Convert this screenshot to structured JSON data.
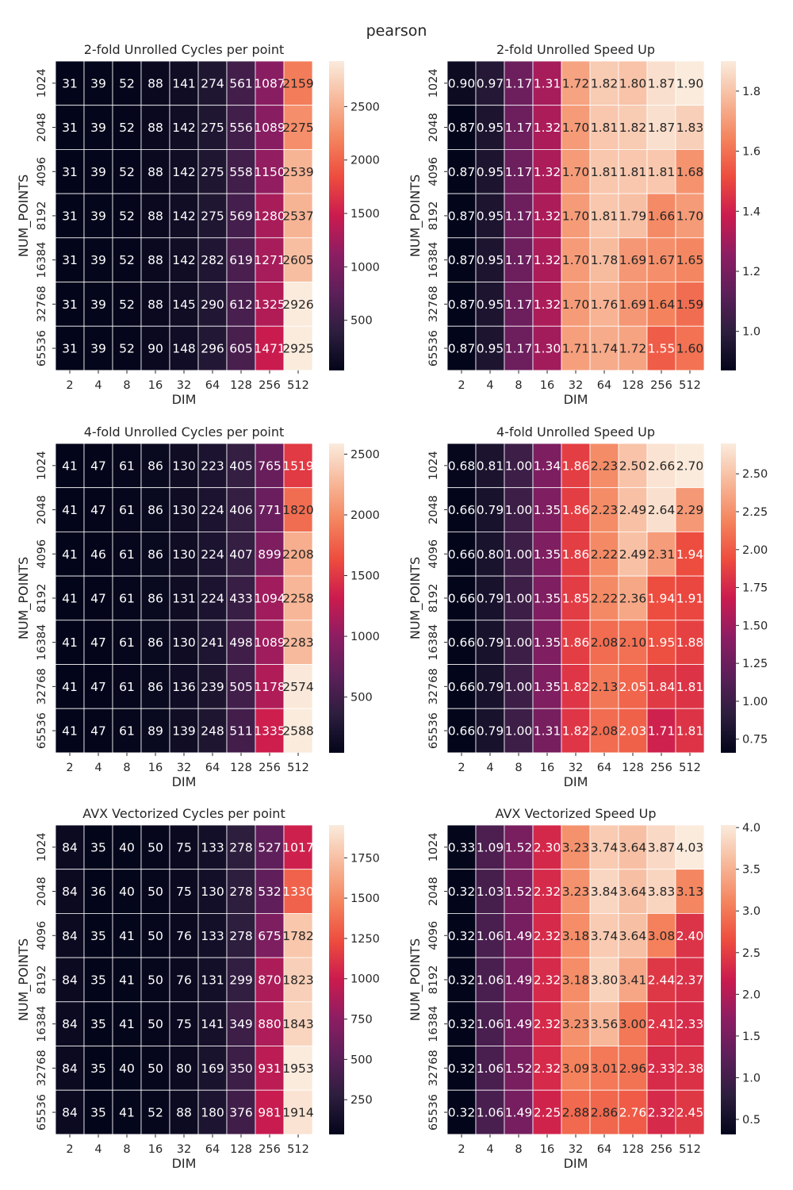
{
  "figure_title": "pearson",
  "chart_data": [
    {
      "type": "heatmap",
      "title": "2-fold Unrolled Cycles per point",
      "xlabel": "DIM",
      "ylabel": "NUM_POINTS",
      "x": [
        "2",
        "4",
        "8",
        "16",
        "32",
        "64",
        "128",
        "256",
        "512"
      ],
      "y": [
        "1024",
        "2048",
        "4096",
        "8192",
        "16384",
        "32768",
        "65536"
      ],
      "values": [
        [
          31,
          39,
          52,
          88,
          141,
          274,
          561,
          1087,
          2159
        ],
        [
          31,
          39,
          52,
          88,
          142,
          275,
          556,
          1089,
          2275
        ],
        [
          31,
          39,
          52,
          88,
          142,
          275,
          558,
          1150,
          2539
        ],
        [
          31,
          39,
          52,
          88,
          142,
          275,
          569,
          1280,
          2537
        ],
        [
          31,
          39,
          52,
          88,
          142,
          282,
          619,
          1271,
          2605
        ],
        [
          31,
          39,
          52,
          88,
          145,
          290,
          612,
          1325,
          2926
        ],
        [
          31,
          39,
          52,
          90,
          148,
          296,
          605,
          1471,
          2925
        ]
      ],
      "value_labels": [
        [
          "31",
          "39",
          "52",
          "88",
          "141",
          "274",
          "561",
          "1087",
          "2159"
        ],
        [
          "31",
          "39",
          "52",
          "88",
          "142",
          "275",
          "556",
          "1089",
          "2275"
        ],
        [
          "31",
          "39",
          "52",
          "88",
          "142",
          "275",
          "558",
          "1150",
          "2539"
        ],
        [
          "31",
          "39",
          "52",
          "88",
          "142",
          "275",
          "569",
          "1280",
          "2537"
        ],
        [
          "31",
          "39",
          "52",
          "88",
          "142",
          "282",
          "619",
          "1271",
          "2605"
        ],
        [
          "31",
          "39",
          "52",
          "88",
          "145",
          "290",
          "612",
          "1325",
          "2926"
        ],
        [
          "31",
          "39",
          "52",
          "90",
          "148",
          "296",
          "605",
          "1471",
          "2925"
        ]
      ],
      "vmin": 31,
      "vmax": 2926,
      "colorbar_ticks": [
        500,
        1000,
        1500,
        2000,
        2500
      ],
      "colorbar_tick_labels": [
        "500",
        "1000",
        "1500",
        "2000",
        "2500"
      ],
      "colormap": "rocket"
    },
    {
      "type": "heatmap",
      "title": "2-fold Unrolled Speed Up",
      "xlabel": "DIM",
      "ylabel": "NUM_POINTS",
      "x": [
        "2",
        "4",
        "8",
        "16",
        "32",
        "64",
        "128",
        "256",
        "512"
      ],
      "y": [
        "1024",
        "2048",
        "4096",
        "8192",
        "16384",
        "32768",
        "65536"
      ],
      "values": [
        [
          0.9,
          0.97,
          1.17,
          1.31,
          1.72,
          1.82,
          1.8,
          1.87,
          1.9
        ],
        [
          0.87,
          0.95,
          1.17,
          1.32,
          1.7,
          1.81,
          1.82,
          1.87,
          1.83
        ],
        [
          0.87,
          0.95,
          1.17,
          1.32,
          1.7,
          1.81,
          1.81,
          1.81,
          1.68
        ],
        [
          0.87,
          0.95,
          1.17,
          1.32,
          1.7,
          1.81,
          1.79,
          1.66,
          1.7
        ],
        [
          0.87,
          0.95,
          1.17,
          1.32,
          1.7,
          1.78,
          1.69,
          1.67,
          1.65
        ],
        [
          0.87,
          0.95,
          1.17,
          1.32,
          1.7,
          1.76,
          1.69,
          1.64,
          1.59
        ],
        [
          0.87,
          0.95,
          1.17,
          1.3,
          1.71,
          1.74,
          1.72,
          1.55,
          1.6
        ]
      ],
      "value_labels": [
        [
          "0.90",
          "0.97",
          "1.17",
          "1.31",
          "1.72",
          "1.82",
          "1.80",
          "1.87",
          "1.90"
        ],
        [
          "0.87",
          "0.95",
          "1.17",
          "1.32",
          "1.70",
          "1.81",
          "1.82",
          "1.87",
          "1.83"
        ],
        [
          "0.87",
          "0.95",
          "1.17",
          "1.32",
          "1.70",
          "1.81",
          "1.81",
          "1.81",
          "1.68"
        ],
        [
          "0.87",
          "0.95",
          "1.17",
          "1.32",
          "1.70",
          "1.81",
          "1.79",
          "1.66",
          "1.70"
        ],
        [
          "0.87",
          "0.95",
          "1.17",
          "1.32",
          "1.70",
          "1.78",
          "1.69",
          "1.67",
          "1.65"
        ],
        [
          "0.87",
          "0.95",
          "1.17",
          "1.32",
          "1.70",
          "1.76",
          "1.69",
          "1.64",
          "1.59"
        ],
        [
          "0.87",
          "0.95",
          "1.17",
          "1.30",
          "1.71",
          "1.74",
          "1.72",
          "1.55",
          "1.60"
        ]
      ],
      "vmin": 0.87,
      "vmax": 1.9,
      "colorbar_ticks": [
        1.0,
        1.2,
        1.4,
        1.6,
        1.8
      ],
      "colorbar_tick_labels": [
        "1.0",
        "1.2",
        "1.4",
        "1.6",
        "1.8"
      ],
      "colormap": "rocket"
    },
    {
      "type": "heatmap",
      "title": "4-fold Unrolled Cycles per point",
      "xlabel": "DIM",
      "ylabel": "NUM_POINTS",
      "x": [
        "2",
        "4",
        "8",
        "16",
        "32",
        "64",
        "128",
        "256",
        "512"
      ],
      "y": [
        "1024",
        "2048",
        "4096",
        "8192",
        "16384",
        "32768",
        "65536"
      ],
      "values": [
        [
          41,
          47,
          61,
          86,
          130,
          223,
          405,
          765,
          1519
        ],
        [
          41,
          47,
          61,
          86,
          130,
          224,
          406,
          771,
          1820
        ],
        [
          41,
          46,
          61,
          86,
          130,
          224,
          407,
          899,
          2208
        ],
        [
          41,
          47,
          61,
          86,
          131,
          224,
          433,
          1094,
          2258
        ],
        [
          41,
          47,
          61,
          86,
          130,
          241,
          498,
          1089,
          2283
        ],
        [
          41,
          47,
          61,
          86,
          136,
          239,
          505,
          1178,
          2574
        ],
        [
          41,
          47,
          61,
          89,
          139,
          248,
          511,
          1335,
          2588
        ]
      ],
      "value_labels": [
        [
          "41",
          "47",
          "61",
          "86",
          "130",
          "223",
          "405",
          "765",
          "1519"
        ],
        [
          "41",
          "47",
          "61",
          "86",
          "130",
          "224",
          "406",
          "771",
          "1820"
        ],
        [
          "41",
          "46",
          "61",
          "86",
          "130",
          "224",
          "407",
          "899",
          "2208"
        ],
        [
          "41",
          "47",
          "61",
          "86",
          "131",
          "224",
          "433",
          "1094",
          "2258"
        ],
        [
          "41",
          "47",
          "61",
          "86",
          "130",
          "241",
          "498",
          "1089",
          "2283"
        ],
        [
          "41",
          "47",
          "61",
          "86",
          "136",
          "239",
          "505",
          "1178",
          "2574"
        ],
        [
          "41",
          "47",
          "61",
          "89",
          "139",
          "248",
          "511",
          "1335",
          "2588"
        ]
      ],
      "vmin": 41,
      "vmax": 2588,
      "colorbar_ticks": [
        500,
        1000,
        1500,
        2000,
        2500
      ],
      "colorbar_tick_labels": [
        "500",
        "1000",
        "1500",
        "2000",
        "2500"
      ],
      "colormap": "rocket"
    },
    {
      "type": "heatmap",
      "title": "4-fold Unrolled Speed Up",
      "xlabel": "DIM",
      "ylabel": "NUM_POINTS",
      "x": [
        "2",
        "4",
        "8",
        "16",
        "32",
        "64",
        "128",
        "256",
        "512"
      ],
      "y": [
        "1024",
        "2048",
        "4096",
        "8192",
        "16384",
        "32768",
        "65536"
      ],
      "values": [
        [
          0.68,
          0.81,
          1.0,
          1.34,
          1.86,
          2.23,
          2.5,
          2.66,
          2.7
        ],
        [
          0.66,
          0.79,
          1.0,
          1.35,
          1.86,
          2.23,
          2.49,
          2.64,
          2.29
        ],
        [
          0.66,
          0.8,
          1.0,
          1.35,
          1.86,
          2.22,
          2.49,
          2.31,
          1.94
        ],
        [
          0.66,
          0.79,
          1.0,
          1.35,
          1.85,
          2.22,
          2.36,
          1.94,
          1.91
        ],
        [
          0.66,
          0.79,
          1.0,
          1.35,
          1.86,
          2.08,
          2.1,
          1.95,
          1.88
        ],
        [
          0.66,
          0.79,
          1.0,
          1.35,
          1.82,
          2.13,
          2.05,
          1.84,
          1.81
        ],
        [
          0.66,
          0.79,
          1.0,
          1.31,
          1.82,
          2.08,
          2.03,
          1.71,
          1.81
        ]
      ],
      "value_labels": [
        [
          "0.68",
          "0.81",
          "1.00",
          "1.34",
          "1.86",
          "2.23",
          "2.50",
          "2.66",
          "2.70"
        ],
        [
          "0.66",
          "0.79",
          "1.00",
          "1.35",
          "1.86",
          "2.23",
          "2.49",
          "2.64",
          "2.29"
        ],
        [
          "0.66",
          "0.80",
          "1.00",
          "1.35",
          "1.86",
          "2.22",
          "2.49",
          "2.31",
          "1.94"
        ],
        [
          "0.66",
          "0.79",
          "1.00",
          "1.35",
          "1.85",
          "2.22",
          "2.36",
          "1.94",
          "1.91"
        ],
        [
          "0.66",
          "0.79",
          "1.00",
          "1.35",
          "1.86",
          "2.08",
          "2.10",
          "1.95",
          "1.88"
        ],
        [
          "0.66",
          "0.79",
          "1.00",
          "1.35",
          "1.82",
          "2.13",
          "2.05",
          "1.84",
          "1.81"
        ],
        [
          "0.66",
          "0.79",
          "1.00",
          "1.31",
          "1.82",
          "2.08",
          "2.03",
          "1.71",
          "1.81"
        ]
      ],
      "vmin": 0.66,
      "vmax": 2.7,
      "colorbar_ticks": [
        0.75,
        1.0,
        1.25,
        1.5,
        1.75,
        2.0,
        2.25,
        2.5
      ],
      "colorbar_tick_labels": [
        "0.75",
        "1.00",
        "1.25",
        "1.50",
        "1.75",
        "2.00",
        "2.25",
        "2.50"
      ],
      "colormap": "rocket"
    },
    {
      "type": "heatmap",
      "title": "AVX Vectorized Cycles per point",
      "xlabel": "DIM",
      "ylabel": "NUM_POINTS",
      "x": [
        "2",
        "4",
        "8",
        "16",
        "32",
        "64",
        "128",
        "256",
        "512"
      ],
      "y": [
        "1024",
        "2048",
        "4096",
        "8192",
        "16384",
        "32768",
        "65536"
      ],
      "values": [
        [
          84,
          35,
          40,
          50,
          75,
          133,
          278,
          527,
          1017
        ],
        [
          84,
          36,
          40,
          50,
          75,
          130,
          278,
          532,
          1330
        ],
        [
          84,
          35,
          41,
          50,
          76,
          133,
          278,
          675,
          1782
        ],
        [
          84,
          35,
          41,
          50,
          76,
          131,
          299,
          870,
          1823
        ],
        [
          84,
          35,
          41,
          50,
          75,
          141,
          349,
          880,
          1843
        ],
        [
          84,
          35,
          40,
          50,
          80,
          169,
          350,
          931,
          1953
        ],
        [
          84,
          35,
          41,
          52,
          88,
          180,
          376,
          981,
          1914
        ]
      ],
      "value_labels": [
        [
          "84",
          "35",
          "40",
          "50",
          "75",
          "133",
          "278",
          "527",
          "1017"
        ],
        [
          "84",
          "36",
          "40",
          "50",
          "75",
          "130",
          "278",
          "532",
          "1330"
        ],
        [
          "84",
          "35",
          "41",
          "50",
          "76",
          "133",
          "278",
          "675",
          "1782"
        ],
        [
          "84",
          "35",
          "41",
          "50",
          "76",
          "131",
          "299",
          "870",
          "1823"
        ],
        [
          "84",
          "35",
          "41",
          "50",
          "75",
          "141",
          "349",
          "880",
          "1843"
        ],
        [
          "84",
          "35",
          "40",
          "50",
          "80",
          "169",
          "350",
          "931",
          "1953"
        ],
        [
          "84",
          "35",
          "41",
          "52",
          "88",
          "180",
          "376",
          "981",
          "1914"
        ]
      ],
      "vmin": 35,
      "vmax": 1953,
      "colorbar_ticks": [
        250,
        500,
        750,
        1000,
        1250,
        1500,
        1750
      ],
      "colorbar_tick_labels": [
        "250",
        "500",
        "750",
        "1000",
        "1250",
        "1500",
        "1750"
      ],
      "colormap": "rocket"
    },
    {
      "type": "heatmap",
      "title": "AVX Vectorized Speed Up",
      "xlabel": "DIM",
      "ylabel": "NUM_POINTS",
      "x": [
        "2",
        "4",
        "8",
        "16",
        "32",
        "64",
        "128",
        "256",
        "512"
      ],
      "y": [
        "1024",
        "2048",
        "4096",
        "8192",
        "16384",
        "32768",
        "65536"
      ],
      "values": [
        [
          0.33,
          1.09,
          1.52,
          2.3,
          3.23,
          3.74,
          3.64,
          3.87,
          4.03
        ],
        [
          0.32,
          1.03,
          1.52,
          2.32,
          3.23,
          3.84,
          3.64,
          3.83,
          3.13
        ],
        [
          0.32,
          1.06,
          1.49,
          2.32,
          3.18,
          3.74,
          3.64,
          3.08,
          2.4
        ],
        [
          0.32,
          1.06,
          1.49,
          2.32,
          3.18,
          3.8,
          3.41,
          2.44,
          2.37
        ],
        [
          0.32,
          1.06,
          1.49,
          2.32,
          3.23,
          3.56,
          3.0,
          2.41,
          2.33
        ],
        [
          0.32,
          1.06,
          1.52,
          2.32,
          3.09,
          3.01,
          2.96,
          2.33,
          2.38
        ],
        [
          0.32,
          1.06,
          1.49,
          2.25,
          2.88,
          2.86,
          2.76,
          2.32,
          2.45
        ]
      ],
      "value_labels": [
        [
          "0.33",
          "1.09",
          "1.52",
          "2.30",
          "3.23",
          "3.74",
          "3.64",
          "3.87",
          "4.03"
        ],
        [
          "0.32",
          "1.03",
          "1.52",
          "2.32",
          "3.23",
          "3.84",
          "3.64",
          "3.83",
          "3.13"
        ],
        [
          "0.32",
          "1.06",
          "1.49",
          "2.32",
          "3.18",
          "3.74",
          "3.64",
          "3.08",
          "2.40"
        ],
        [
          "0.32",
          "1.06",
          "1.49",
          "2.32",
          "3.18",
          "3.80",
          "3.41",
          "2.44",
          "2.37"
        ],
        [
          "0.32",
          "1.06",
          "1.49",
          "2.32",
          "3.23",
          "3.56",
          "3.00",
          "2.41",
          "2.33"
        ],
        [
          "0.32",
          "1.06",
          "1.52",
          "2.32",
          "3.09",
          "3.01",
          "2.96",
          "2.33",
          "2.38"
        ],
        [
          "0.32",
          "1.06",
          "1.49",
          "2.25",
          "2.88",
          "2.86",
          "2.76",
          "2.32",
          "2.45"
        ]
      ],
      "vmin": 0.32,
      "vmax": 4.03,
      "colorbar_ticks": [
        0.5,
        1.0,
        1.5,
        2.0,
        2.5,
        3.0,
        3.5,
        4.0
      ],
      "colorbar_tick_labels": [
        "0.5",
        "1.0",
        "1.5",
        "2.0",
        "2.5",
        "3.0",
        "3.5",
        "4.0"
      ],
      "colormap": "rocket"
    }
  ]
}
